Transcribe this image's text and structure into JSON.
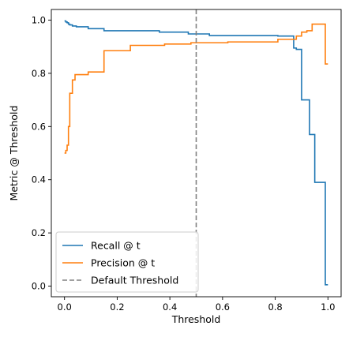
{
  "chart_data": {
    "type": "line",
    "xlabel": "Threshold",
    "ylabel": "Metric @ Threshold",
    "xlim": [
      -0.05,
      1.05
    ],
    "ylim": [
      -0.04,
      1.04
    ],
    "xticks": [
      0.0,
      0.2,
      0.4,
      0.6,
      0.8,
      1.0
    ],
    "xtick_labels": [
      "0.0",
      "0.2",
      "0.4",
      "0.6",
      "0.8",
      "1.0"
    ],
    "yticks": [
      0.0,
      0.2,
      0.4,
      0.6,
      0.8,
      1.0
    ],
    "ytick_labels": [
      "0.0",
      "0.2",
      "0.4",
      "0.6",
      "0.8",
      "1.0"
    ],
    "grid": false,
    "legend_position": "lower-left",
    "series": [
      {
        "name": "Recall @ t",
        "color": "#1f77b4",
        "style": "solid",
        "x": [
          0.0,
          0.005,
          0.01,
          0.015,
          0.02,
          0.03,
          0.045,
          0.09,
          0.15,
          0.36,
          0.47,
          0.55,
          0.81,
          0.87,
          0.88,
          0.9,
          0.93,
          0.95,
          0.99,
          1.0
        ],
        "y": [
          0.997,
          0.993,
          0.99,
          0.985,
          0.982,
          0.978,
          0.975,
          0.968,
          0.96,
          0.955,
          0.948,
          0.942,
          0.94,
          0.895,
          0.89,
          0.7,
          0.57,
          0.39,
          0.005,
          0.005
        ]
      },
      {
        "name": "Precision @ t",
        "color": "#ff7f0e",
        "style": "solid",
        "x": [
          0.0,
          0.005,
          0.01,
          0.015,
          0.02,
          0.03,
          0.04,
          0.09,
          0.15,
          0.25,
          0.38,
          0.48,
          0.62,
          0.81,
          0.88,
          0.9,
          0.92,
          0.94,
          0.99,
          1.0
        ],
        "y": [
          0.5,
          0.51,
          0.53,
          0.6,
          0.725,
          0.775,
          0.795,
          0.805,
          0.885,
          0.905,
          0.91,
          0.915,
          0.918,
          0.928,
          0.94,
          0.955,
          0.96,
          0.985,
          0.835,
          0.835
        ]
      },
      {
        "name": "Default Threshold",
        "color": "#808080",
        "style": "dashed",
        "vline_x": 0.5
      }
    ]
  }
}
